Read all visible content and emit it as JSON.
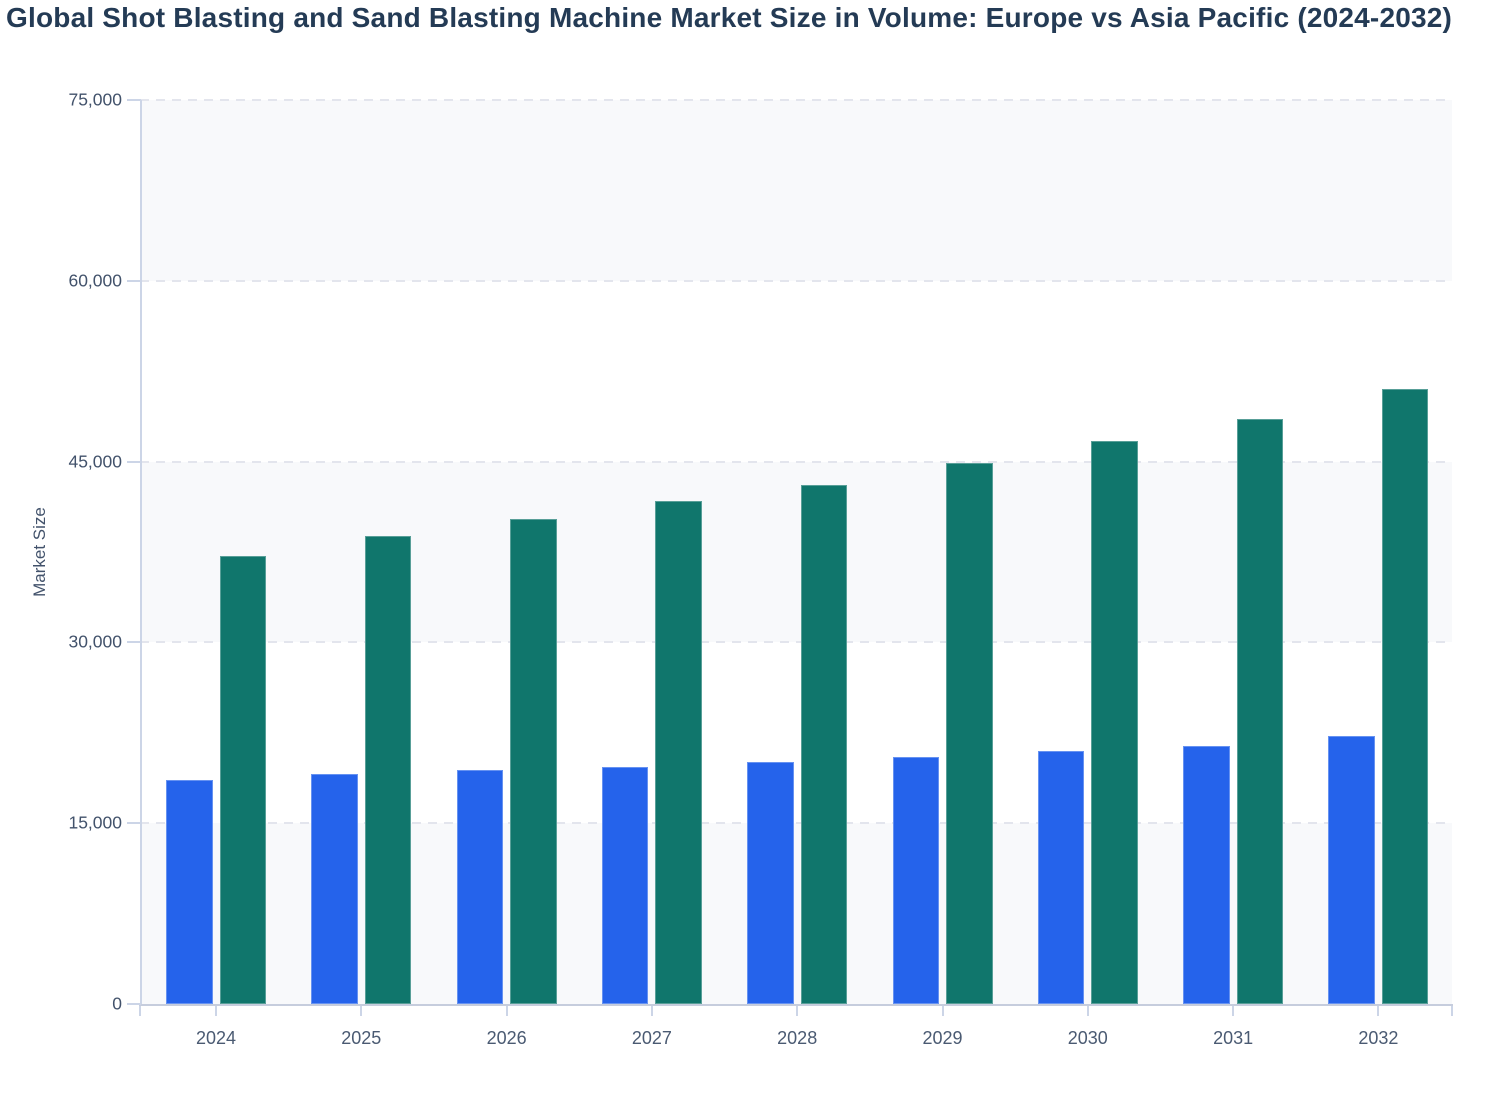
{
  "chart_data": {
    "type": "bar",
    "title": "Global Shot Blasting and Sand Blasting Machine Market Size in Volume: Europe vs Asia Pacific (2024-2032)",
    "ylabel": "Market Size",
    "xlabel": "",
    "categories": [
      "2024",
      "2025",
      "2026",
      "2027",
      "2028",
      "2029",
      "2030",
      "2031",
      "2032"
    ],
    "series": [
      {
        "name": "Europe",
        "color": "#2563eb",
        "values": [
          18600,
          19100,
          19400,
          19700,
          20100,
          20500,
          21000,
          21400,
          22200
        ]
      },
      {
        "name": "Asia Pacific",
        "color": "#10766c",
        "values": [
          37200,
          38800,
          40200,
          41700,
          43100,
          44900,
          46700,
          48500,
          51000
        ]
      }
    ],
    "ylim": [
      0,
      75000
    ],
    "yticks": [
      0,
      15000,
      30000,
      45000,
      60000,
      75000
    ],
    "grid": "horizontal-dashed",
    "legend_position": "none",
    "band_colors": [
      "#f8f9fb",
      "#ffffff"
    ]
  },
  "colors": {
    "title_text": "#243b55",
    "axis_text": "#42526b",
    "x_axis_text": "#4a5a72",
    "gridline": "#e3e5ed",
    "axis_line": "#ccd5e7",
    "plot_band": "#f8f9fb",
    "background": "#ffffff"
  }
}
